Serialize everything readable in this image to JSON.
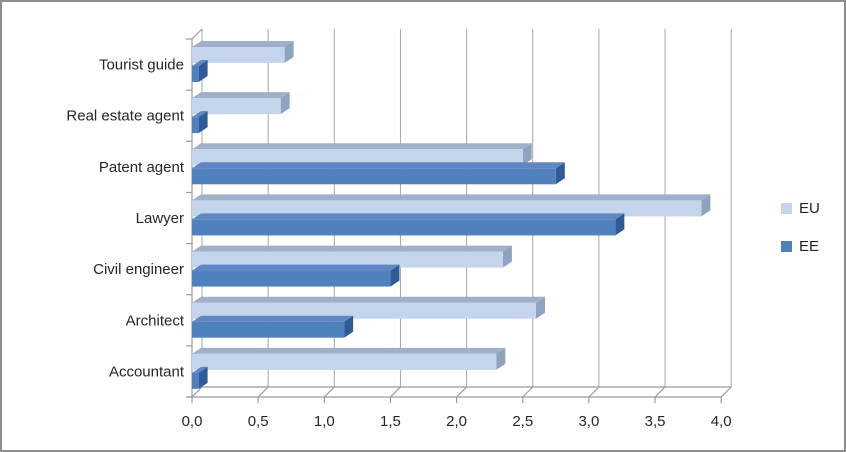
{
  "chart_data": {
    "type": "bar",
    "orientation": "horizontal",
    "style": "3d",
    "categories": [
      "Tourist guide",
      "Real estate agent",
      "Patent agent",
      "Lawyer",
      "Civil engineer",
      "Architect",
      "Accountant"
    ],
    "series": [
      {
        "name": "EU",
        "values": [
          0.7,
          0.67,
          2.5,
          3.85,
          2.35,
          2.6,
          2.3
        ]
      },
      {
        "name": "EE",
        "values": [
          0.05,
          0.05,
          2.75,
          3.2,
          1.5,
          1.15,
          0.05
        ]
      }
    ],
    "xlim": [
      0,
      4
    ],
    "x_tick_step": 0.5,
    "x_tick_labels": [
      "0,0",
      "0,5",
      "1,0",
      "1,5",
      "2,0",
      "2,5",
      "3,0",
      "3,5",
      "4,0"
    ],
    "grid": true,
    "legend_position": "right"
  },
  "legend": {
    "items": [
      {
        "label": "EU"
      },
      {
        "label": "EE"
      }
    ]
  },
  "colors": {
    "eu_front": "#c4d4ea",
    "eu_top": "#9fb1c9",
    "eu_side": "#8ea3c0",
    "ee_front": "#4f81bd",
    "ee_top": "#6087c4",
    "ee_side": "#2f5c99",
    "gridline": "#a6a6a6",
    "axis": "#9a9a9a",
    "text": "#262626",
    "border": "#8d8d8d"
  }
}
